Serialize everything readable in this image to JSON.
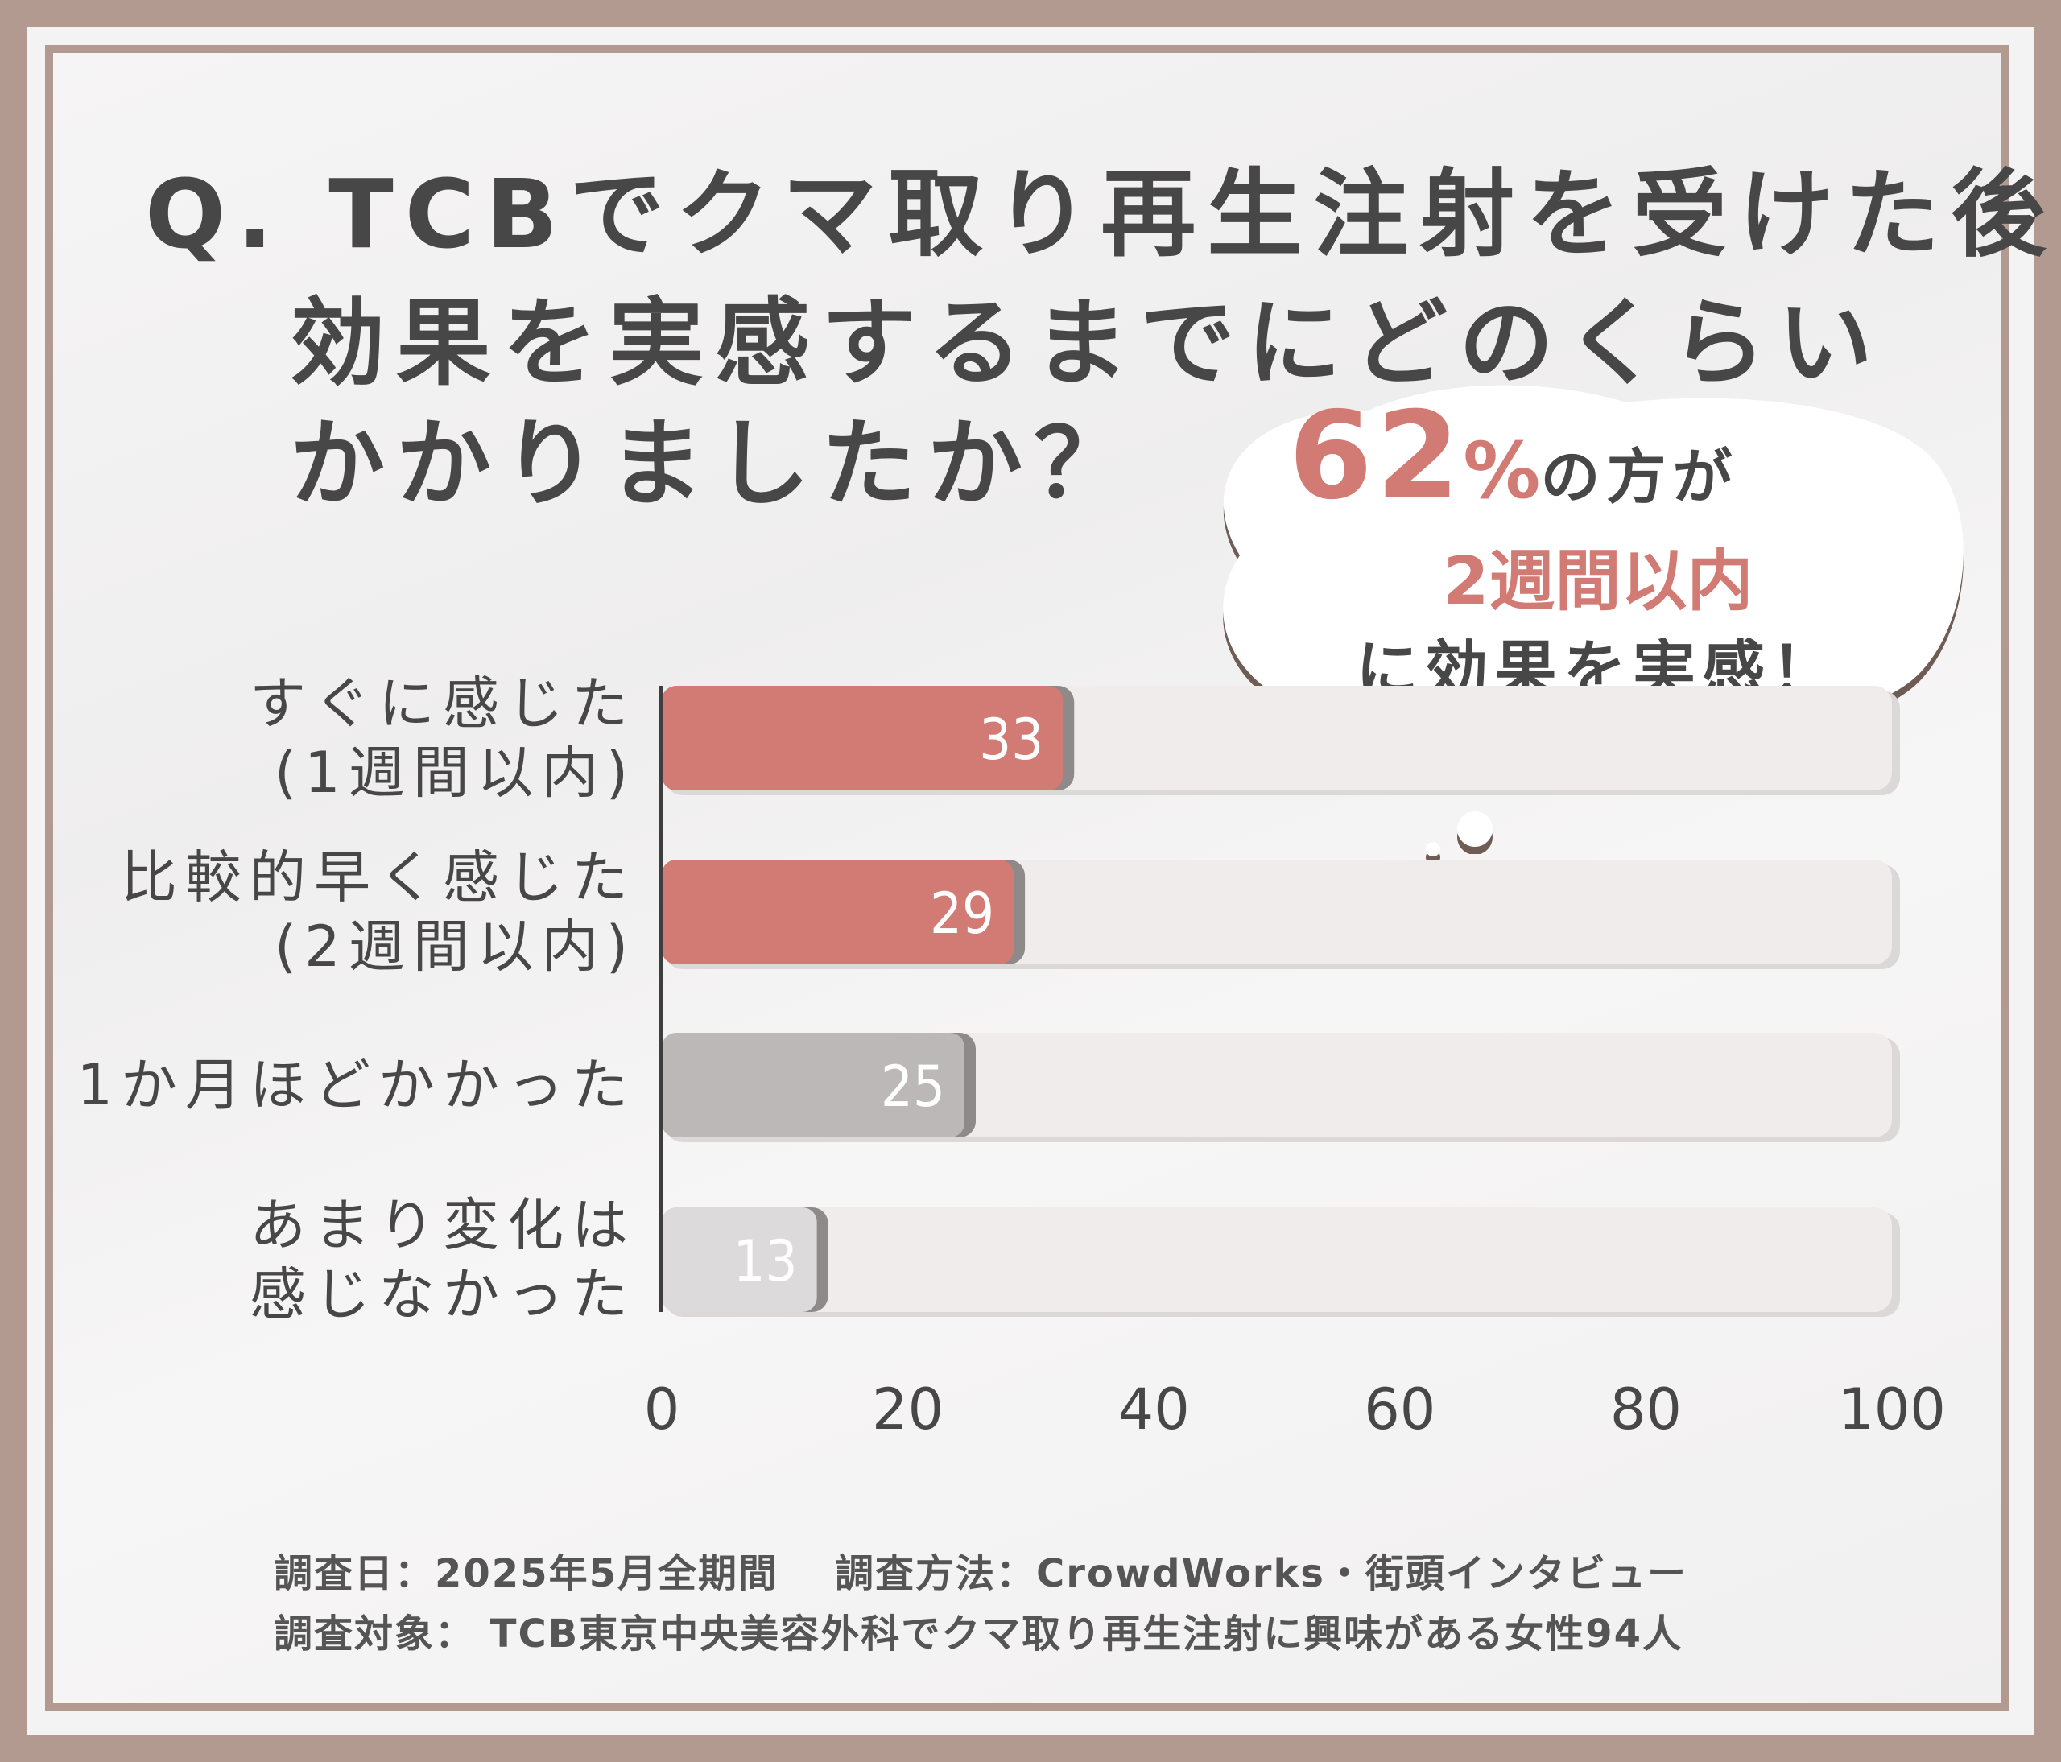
{
  "title": {
    "line1": "Q. TCBでクマ取り再生注射を受けた後",
    "line2": "効果を実感するまでにどのくらい",
    "line3": "かかりましたか？"
  },
  "callout": {
    "big_number": "62",
    "percent": "%",
    "line1_tail": "の方が",
    "line2": "2週間以内",
    "line3": "に効果を実感！"
  },
  "chart_data": {
    "type": "bar",
    "orientation": "horizontal",
    "categories": [
      [
        "すぐに感じた",
        "(1週間以内)"
      ],
      [
        "比較的早く感じた",
        "(2週間以内)"
      ],
      [
        "1か月ほどかかった"
      ],
      [
        "あまり変化は",
        "感じなかった"
      ]
    ],
    "values": [
      33,
      29,
      25,
      13
    ],
    "xlim": [
      0,
      100
    ],
    "xticks": [
      "0",
      "20",
      "40",
      "60",
      "80",
      "100"
    ],
    "colors": [
      "#d27b74",
      "#d27b74",
      "#bcb8b7",
      "#dcdada"
    ],
    "track_color": "#f0ecec"
  },
  "source": {
    "date": "調査日：2025年5月全期間",
    "method": "調査方法：CrowdWorks・街頭インタビュー",
    "target": "調査対象： TCB東京中央美容外科でクマ取り再生注射に興味がある女性94人"
  }
}
